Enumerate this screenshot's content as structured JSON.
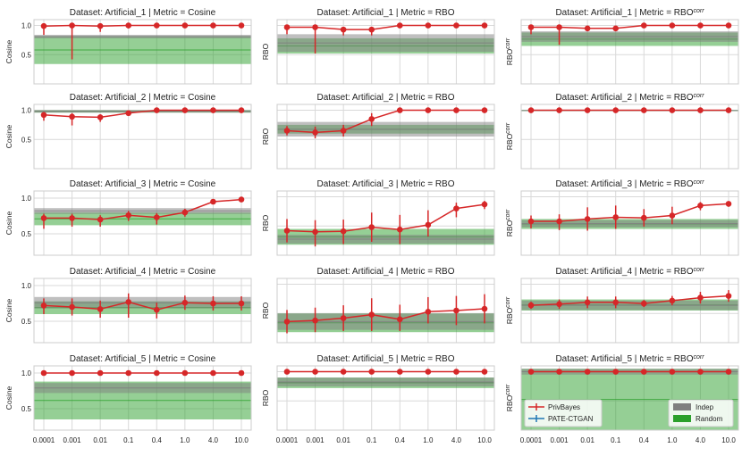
{
  "figure": {
    "type": "grid of line charts with error bars and shaded bands",
    "x_tick_labels": [
      "0.0001",
      "0.001",
      "0.01",
      "0.1",
      "0.4",
      "1.0",
      "4.0",
      "10.0"
    ],
    "colors": {
      "privbayes": "#d62728",
      "pate_ctgan": "#1f77b4",
      "indep_band": "#7f7f7f",
      "random_band": "#2ca02c",
      "grid": "#d9d9d9"
    },
    "legend": {
      "lines": [
        "PrivBayes",
        "PATE-CTGAN"
      ],
      "bands": [
        "Indep",
        "Random"
      ]
    }
  },
  "chart_data": [
    {
      "type": "line",
      "title": "Dataset: Artificial_1 | Metric = Cosine",
      "ylabel": "Cosine",
      "yticks": [
        "0.5",
        "1.0"
      ],
      "ytick_values": [
        0.5,
        1.0
      ],
      "ylim": [
        0.0,
        1.1
      ],
      "series": [
        {
          "name": "PrivBayes",
          "values": [
            0.99,
            1.0,
            0.99,
            1.0,
            1.0,
            1.0,
            1.0,
            1.0
          ],
          "err_lo": [
            0.15,
            0.58,
            0.1,
            0.05,
            0.02,
            0.02,
            0.01,
            0.01
          ],
          "err_hi": [
            0.01,
            0.01,
            0.01,
            0.01,
            0.01,
            0.01,
            0.01,
            0.01
          ]
        }
      ],
      "indep": [
        0.78,
        0.84
      ],
      "random": [
        0.34,
        0.82
      ]
    },
    {
      "type": "line",
      "title": "Dataset: Artificial_1 | Metric = RBO",
      "ylabel": "RBO",
      "yticks": [],
      "ytick_values": [],
      "ylim": [
        0.0,
        1.1
      ],
      "series": [
        {
          "name": "PrivBayes",
          "values": [
            0.97,
            0.97,
            0.93,
            0.93,
            1.0,
            1.0,
            1.0,
            1.0
          ],
          "err_lo": [
            0.12,
            0.45,
            0.1,
            0.1,
            0.02,
            0.02,
            0.01,
            0.01
          ],
          "err_hi": [
            0.02,
            0.02,
            0.04,
            0.04,
            0.01,
            0.01,
            0.01,
            0.01
          ]
        }
      ],
      "indep": [
        0.55,
        0.85
      ],
      "random": [
        0.52,
        0.78
      ]
    },
    {
      "type": "line",
      "title": "Dataset: Artificial_1 | Metric = RBO^corr",
      "ylabel": "RBO^corr",
      "yticks": [],
      "ytick_values": [],
      "ylim": [
        0.0,
        1.1
      ],
      "series": [
        {
          "name": "PrivBayes",
          "values": [
            0.97,
            0.97,
            0.95,
            0.95,
            1.0,
            1.0,
            1.0,
            1.0
          ],
          "err_lo": [
            0.12,
            0.3,
            0.05,
            0.05,
            0.02,
            0.02,
            0.01,
            0.01
          ],
          "err_hi": [
            0.02,
            0.02,
            0.03,
            0.03,
            0.01,
            0.01,
            0.01,
            0.01
          ]
        }
      ],
      "indep": [
        0.72,
        0.9
      ],
      "random": [
        0.65,
        0.88
      ]
    },
    {
      "type": "line",
      "title": "Dataset: Artificial_2 | Metric = Cosine",
      "ylabel": "Cosine",
      "yticks": [
        "0.5",
        "1.0"
      ],
      "ytick_values": [
        0.5,
        1.0
      ],
      "ylim": [
        0.0,
        1.1
      ],
      "series": [
        {
          "name": "PrivBayes",
          "values": [
            0.92,
            0.89,
            0.88,
            0.95,
            1.0,
            1.0,
            1.0,
            1.0
          ],
          "err_lo": [
            0.1,
            0.15,
            0.08,
            0.04,
            0.01,
            0.01,
            0.01,
            0.01
          ],
          "err_hi": [
            0.05,
            0.06,
            0.05,
            0.03,
            0.01,
            0.01,
            0.01,
            0.01
          ]
        }
      ],
      "indep": [
        0.96,
        1.0
      ],
      "random": [
        0.96,
        1.0
      ]
    },
    {
      "type": "line",
      "title": "Dataset: Artificial_2 | Metric = RBO",
      "ylabel": "RBO",
      "yticks": [],
      "ytick_values": [],
      "ylim": [
        0.0,
        1.1
      ],
      "series": [
        {
          "name": "PrivBayes",
          "values": [
            0.65,
            0.62,
            0.65,
            0.85,
            1.0,
            1.0,
            1.0,
            1.0
          ],
          "err_lo": [
            0.08,
            0.1,
            0.1,
            0.12,
            0.01,
            0.01,
            0.01,
            0.01
          ],
          "err_hi": [
            0.08,
            0.1,
            0.1,
            0.1,
            0.01,
            0.01,
            0.01,
            0.01
          ]
        }
      ],
      "indep": [
        0.55,
        0.8
      ],
      "random": [
        0.6,
        0.75
      ]
    },
    {
      "type": "line",
      "title": "Dataset: Artificial_2 | Metric = RBO^corr",
      "ylabel": "RBO^corr",
      "yticks": [],
      "ytick_values": [],
      "ylim": [
        0.0,
        1.1
      ],
      "series": [
        {
          "name": "PrivBayes",
          "values": [
            1.0,
            1.0,
            1.0,
            1.0,
            1.0,
            1.0,
            1.0,
            1.0
          ],
          "err_lo": [
            0.01,
            0.01,
            0.01,
            0.01,
            0.01,
            0.01,
            0.01,
            0.01
          ],
          "err_hi": [
            0.01,
            0.01,
            0.01,
            0.01,
            0.01,
            0.01,
            0.01,
            0.01
          ]
        }
      ],
      "indep": [
        0.99,
        1.0
      ],
      "random": [
        0.99,
        1.0
      ]
    },
    {
      "type": "line",
      "title": "Dataset: Artificial_3 | Metric = Cosine",
      "ylabel": "Cosine",
      "yticks": [
        "0.5",
        "1.0"
      ],
      "ytick_values": [
        0.5,
        1.0
      ],
      "ylim": [
        0.2,
        1.1
      ],
      "series": [
        {
          "name": "PrivBayes",
          "values": [
            0.72,
            0.72,
            0.7,
            0.76,
            0.73,
            0.8,
            0.95,
            0.98
          ],
          "err_lo": [
            0.15,
            0.12,
            0.1,
            0.08,
            0.1,
            0.06,
            0.03,
            0.02
          ],
          "err_hi": [
            0.06,
            0.06,
            0.06,
            0.06,
            0.06,
            0.05,
            0.02,
            0.01
          ]
        }
      ],
      "indep": [
        0.78,
        0.86
      ],
      "random": [
        0.62,
        0.8
      ]
    },
    {
      "type": "line",
      "title": "Dataset: Artificial_3 | Metric = RBO",
      "ylabel": "RBO",
      "yticks": [],
      "ytick_values": [],
      "ylim": [
        0.0,
        1.1
      ],
      "series": [
        {
          "name": "PrivBayes",
          "values": [
            0.42,
            0.4,
            0.41,
            0.48,
            0.44,
            0.52,
            0.8,
            0.87
          ],
          "err_lo": [
            0.2,
            0.25,
            0.22,
            0.25,
            0.25,
            0.2,
            0.15,
            0.08
          ],
          "err_hi": [
            0.2,
            0.2,
            0.2,
            0.25,
            0.25,
            0.25,
            0.1,
            0.06
          ]
        }
      ],
      "indep": [
        0.2,
        0.35
      ],
      "random": [
        0.18,
        0.45
      ]
    },
    {
      "type": "line",
      "title": "Dataset: Artificial_3 | Metric = RBO^corr",
      "ylabel": "RBO^corr",
      "yticks": [],
      "ytick_values": [],
      "ylim": [
        0.0,
        1.1
      ],
      "series": [
        {
          "name": "PrivBayes",
          "values": [
            0.58,
            0.58,
            0.62,
            0.65,
            0.64,
            0.68,
            0.85,
            0.88
          ],
          "err_lo": [
            0.12,
            0.15,
            0.2,
            0.2,
            0.15,
            0.15,
            0.08,
            0.05
          ],
          "err_hi": [
            0.1,
            0.12,
            0.2,
            0.2,
            0.15,
            0.15,
            0.06,
            0.04
          ]
        }
      ],
      "indep": [
        0.48,
        0.6
      ],
      "random": [
        0.45,
        0.62
      ]
    },
    {
      "type": "line",
      "title": "Dataset: Artificial_4 | Metric = Cosine",
      "ylabel": "Cosine",
      "yticks": [
        "0.5",
        "1.0"
      ],
      "ytick_values": [
        0.5,
        1.0
      ],
      "ylim": [
        0.2,
        1.1
      ],
      "series": [
        {
          "name": "PrivBayes",
          "values": [
            0.72,
            0.7,
            0.67,
            0.77,
            0.66,
            0.76,
            0.75,
            0.75
          ],
          "err_lo": [
            0.12,
            0.12,
            0.12,
            0.22,
            0.12,
            0.1,
            0.1,
            0.1
          ],
          "err_hi": [
            0.1,
            0.12,
            0.12,
            0.12,
            0.1,
            0.1,
            0.1,
            0.1
          ]
        }
      ],
      "indep": [
        0.68,
        0.84
      ],
      "random": [
        0.6,
        0.78
      ]
    },
    {
      "type": "line",
      "title": "Dataset: Artificial_4 | Metric = RBO",
      "ylabel": "RBO",
      "yticks": [],
      "ytick_values": [],
      "ylim": [
        0.0,
        1.1
      ],
      "series": [
        {
          "name": "PrivBayes",
          "values": [
            0.36,
            0.38,
            0.42,
            0.48,
            0.4,
            0.53,
            0.55,
            0.58
          ],
          "err_lo": [
            0.2,
            0.2,
            0.22,
            0.28,
            0.2,
            0.2,
            0.25,
            0.25
          ],
          "err_hi": [
            0.2,
            0.22,
            0.22,
            0.28,
            0.25,
            0.25,
            0.25,
            0.25
          ]
        }
      ],
      "indep": [
        0.22,
        0.5
      ],
      "random": [
        0.18,
        0.5
      ]
    },
    {
      "type": "line",
      "title": "Dataset: Artificial_4 | Metric = RBO^corr",
      "ylabel": "RBO^corr",
      "yticks": [],
      "ytick_values": [],
      "ylim": [
        0.0,
        1.1
      ],
      "series": [
        {
          "name": "PrivBayes",
          "values": [
            0.64,
            0.66,
            0.69,
            0.69,
            0.67,
            0.72,
            0.77,
            0.8
          ],
          "err_lo": [
            0.06,
            0.08,
            0.1,
            0.1,
            0.06,
            0.08,
            0.1,
            0.1
          ],
          "err_hi": [
            0.06,
            0.08,
            0.1,
            0.1,
            0.06,
            0.08,
            0.1,
            0.1
          ]
        }
      ],
      "indep": [
        0.56,
        0.72
      ],
      "random": [
        0.55,
        0.74
      ]
    },
    {
      "type": "line",
      "title": "Dataset: Artificial_5 | Metric = Cosine",
      "ylabel": "Cosine",
      "yticks": [
        "0.5",
        "1.0"
      ],
      "ytick_values": [
        0.5,
        1.0
      ],
      "ylim": [
        0.2,
        1.1
      ],
      "series": [
        {
          "name": "PrivBayes",
          "values": [
            1.0,
            1.0,
            1.0,
            1.0,
            1.0,
            1.0,
            1.0,
            1.0
          ],
          "err_lo": [
            0.01,
            0.01,
            0.01,
            0.01,
            0.01,
            0.01,
            0.01,
            0.01
          ],
          "err_hi": [
            0.01,
            0.01,
            0.01,
            0.01,
            0.01,
            0.01,
            0.01,
            0.01
          ]
        }
      ],
      "indep": [
        0.72,
        0.86
      ],
      "random": [
        0.35,
        0.88
      ]
    },
    {
      "type": "line",
      "title": "Dataset: Artificial_5 | Metric = RBO",
      "ylabel": "RBO",
      "yticks": [],
      "ytick_values": [],
      "ylim": [
        0.0,
        1.1
      ],
      "series": [
        {
          "name": "PrivBayes",
          "values": [
            1.0,
            1.0,
            1.0,
            1.0,
            1.0,
            1.0,
            1.0,
            1.0
          ],
          "err_lo": [
            0.01,
            0.01,
            0.01,
            0.01,
            0.01,
            0.01,
            0.01,
            0.01
          ],
          "err_hi": [
            0.01,
            0.01,
            0.01,
            0.01,
            0.01,
            0.01,
            0.01,
            0.01
          ]
        }
      ],
      "indep": [
        0.75,
        0.9
      ],
      "random": [
        0.72,
        0.9
      ]
    },
    {
      "type": "line",
      "title": "Dataset: Artificial_5 | Metric = RBO^corr",
      "ylabel": "RBO^corr",
      "yticks": [],
      "ytick_values": [],
      "ylim": [
        0.0,
        1.1
      ],
      "series": [
        {
          "name": "PrivBayes",
          "values": [
            1.0,
            1.0,
            1.0,
            1.0,
            1.0,
            1.0,
            1.0,
            1.0
          ],
          "err_lo": [
            0.01,
            0.01,
            0.01,
            0.01,
            0.01,
            0.01,
            0.01,
            0.01
          ],
          "err_hi": [
            0.01,
            0.01,
            0.01,
            0.01,
            0.01,
            0.01,
            0.01,
            0.01
          ]
        }
      ],
      "indep": [
        0.95,
        1.05
      ],
      "random": [
        0.0,
        1.05
      ]
    }
  ]
}
